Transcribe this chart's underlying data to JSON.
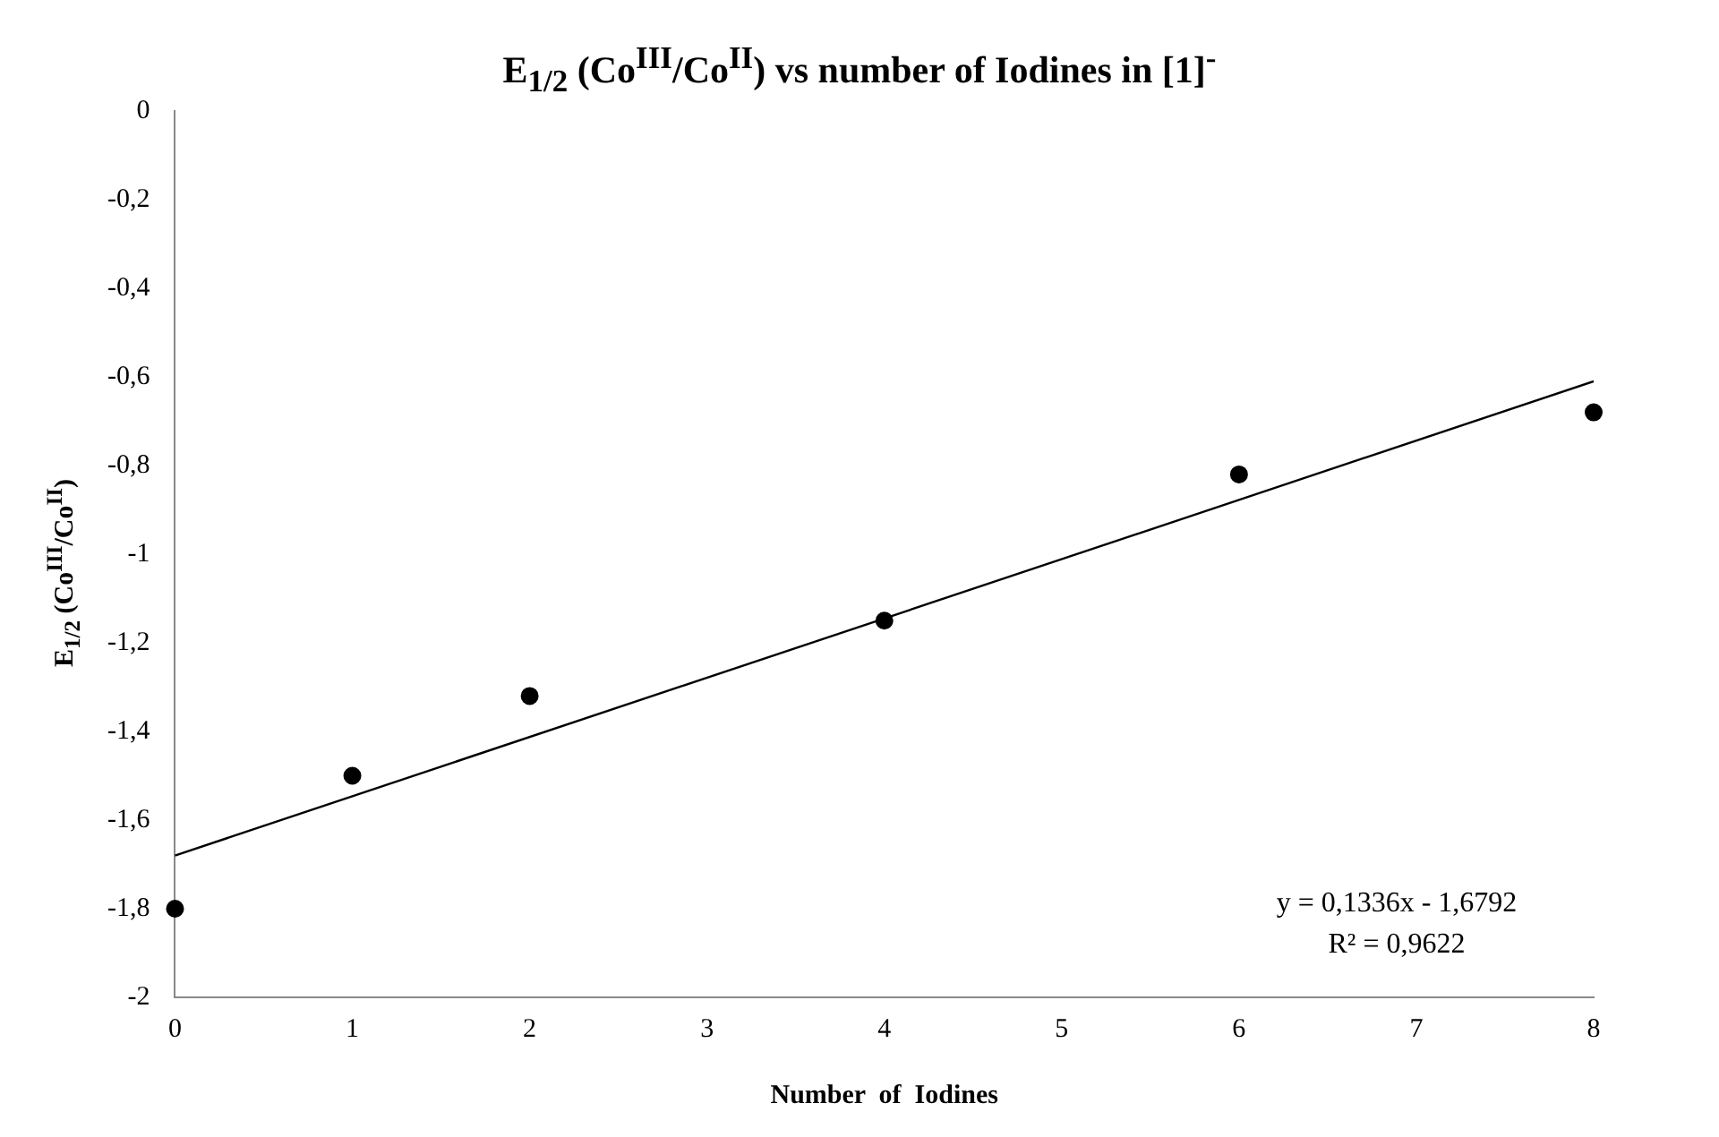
{
  "chart_data": {
    "type": "scatter",
    "title": "E$_{1/2}$ (Co$^{III}$/Co$^{II}$) vs number of Iodines in [1]$^{-}$",
    "xlabel": "Number  of  Iodines",
    "ylabel": "E$_{1/2}$ (Co$^{III}$/Co$^{II}$)",
    "x": [
      0,
      1,
      2,
      4,
      6,
      8
    ],
    "marker": "circle",
    "series": [
      {
        "color": "#000000",
        "values": [
          -1.8,
          -1.5,
          -1.32,
          -1.15,
          -0.82,
          -0.68
        ]
      },
      {
        "type": "line",
        "marker": "none",
        "color": "#000000",
        "x": [
          0,
          8
        ],
        "values": [
          -1.68,
          -0.61
        ]
      }
    ],
    "xlim": [
      0,
      8
    ],
    "xticks": [
      0,
      1,
      2,
      3,
      4,
      5,
      6,
      7,
      8
    ],
    "ylim": [
      -2,
      0
    ],
    "yticks": [
      0,
      {
        "value": -0.2,
        "label": "-0,2"
      },
      {
        "value": -0.4,
        "label": "-0,4"
      },
      {
        "value": -0.6,
        "label": "-0,6"
      },
      {
        "value": -0.8,
        "label": "-0,8"
      },
      -1,
      {
        "value": -1.2,
        "label": "-1,2"
      },
      {
        "value": -1.4,
        "label": "-1,4"
      },
      {
        "value": -1.6,
        "label": "-1,6"
      },
      {
        "value": -1.8,
        "label": "-1,8"
      },
      -2
    ],
    "grid": false,
    "legend": false,
    "annotations": [
      "y = 0,1336x - 1,6792",
      "R² = 0,9622"
    ]
  }
}
